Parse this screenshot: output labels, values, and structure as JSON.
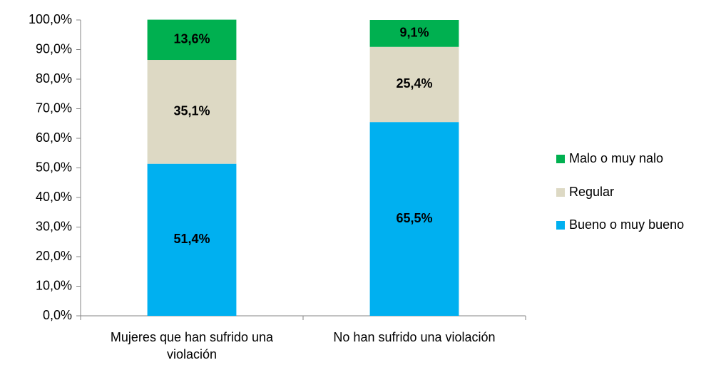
{
  "chart_data": {
    "type": "stacked_bar",
    "categories": [
      "Mujeres que han sufrido una violación",
      "No han sufrido una violación"
    ],
    "series": [
      {
        "name": "Bueno o muy bueno",
        "color": "#00b0f0",
        "values": [
          51.4,
          65.5
        ],
        "value_labels": [
          "51,4%",
          "65,5%"
        ]
      },
      {
        "name": "Regular",
        "color": "#ddd9c4",
        "values": [
          35.1,
          25.4
        ],
        "value_labels": [
          "35,1%",
          "25,4%"
        ]
      },
      {
        "name": "Malo o muy nalo",
        "color": "#00b050",
        "values": [
          13.6,
          9.1
        ],
        "value_labels": [
          "13,6%",
          "9,1%"
        ]
      }
    ],
    "ylim": [
      0,
      100
    ],
    "yticks": [
      {
        "value": 0,
        "label": "0,0%"
      },
      {
        "value": 10,
        "label": "10,0%"
      },
      {
        "value": 20,
        "label": "20,0%"
      },
      {
        "value": 30,
        "label": "30,0%"
      },
      {
        "value": 40,
        "label": "40,0%"
      },
      {
        "value": 50,
        "label": "50,0%"
      },
      {
        "value": 60,
        "label": "60,0%"
      },
      {
        "value": 70,
        "label": "70,0%"
      },
      {
        "value": 80,
        "label": "80,0%"
      },
      {
        "value": 90,
        "label": "90,0%"
      },
      {
        "value": 100,
        "label": "100,0%"
      }
    ],
    "legend": "right"
  }
}
